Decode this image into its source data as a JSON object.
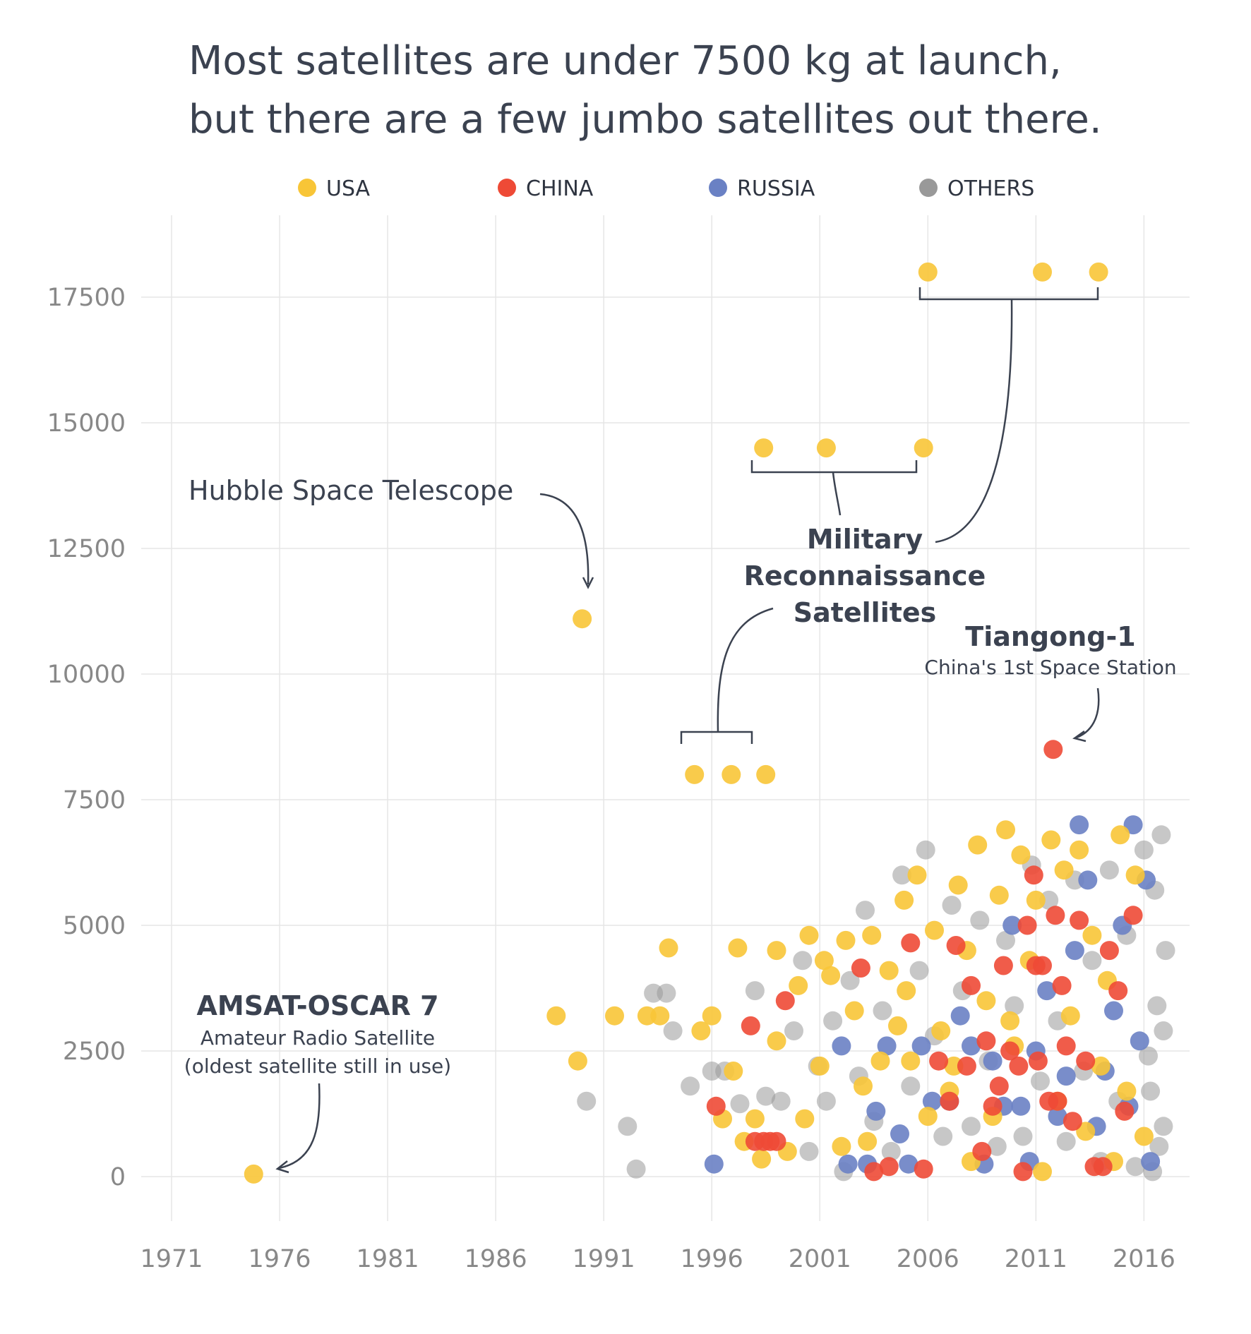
{
  "chart_data": {
    "type": "scatter",
    "title": "Most satellites are under 7500 kg at launch, but there are a few jumbo satellites out there.",
    "title_lines": [
      "Most satellites are under 7500 kg at launch,",
      "but there are a few jumbo satellites out there."
    ],
    "xlabel": "",
    "ylabel": "",
    "xlim": [
      1971,
      2017
    ],
    "ylim": [
      -500,
      18000
    ],
    "x_ticks": [
      1971,
      1976,
      1981,
      1986,
      1991,
      1996,
      2001,
      2006,
      2011,
      2016
    ],
    "y_ticks": [
      0,
      2500,
      5000,
      7500,
      10000,
      12500,
      15000,
      17500
    ],
    "grid": true,
    "legend_position": "top",
    "legend": [
      {
        "name": "USA",
        "color": "#f8c537"
      },
      {
        "name": "CHINA",
        "color": "#ee4a36"
      },
      {
        "name": "RUSSIA",
        "color": "#6a81c4"
      },
      {
        "name": "OTHERS",
        "color": "#999999"
      }
    ],
    "series": [
      {
        "name": "USA",
        "color": "#f8c537",
        "points": [
          [
            1974.8,
            50
          ],
          [
            1988.8,
            3200
          ],
          [
            1989.8,
            2300
          ],
          [
            1990.0,
            11100
          ],
          [
            1991.5,
            3200
          ],
          [
            1993.0,
            3200
          ],
          [
            1993.6,
            3200
          ],
          [
            1994.0,
            4550
          ],
          [
            1995.2,
            8000
          ],
          [
            1996.0,
            3200
          ],
          [
            1996.9,
            8000
          ],
          [
            1997.2,
            4550
          ],
          [
            1998.5,
            8000
          ],
          [
            1998.4,
            14500
          ],
          [
            1999.0,
            4500
          ],
          [
            2001.3,
            14500
          ],
          [
            2005.8,
            14500
          ],
          [
            2006.0,
            18000
          ],
          [
            2011.3,
            18000
          ],
          [
            2013.9,
            18000
          ],
          [
            1995.5,
            2900
          ],
          [
            1996.5,
            1150
          ],
          [
            1997.0,
            2100
          ],
          [
            1997.5,
            700
          ],
          [
            1998.0,
            1150
          ],
          [
            1998.3,
            350
          ],
          [
            1999.0,
            2700
          ],
          [
            1999.5,
            500
          ],
          [
            2000.0,
            3800
          ],
          [
            2000.3,
            1150
          ],
          [
            2000.5,
            4800
          ],
          [
            2001.0,
            2200
          ],
          [
            2001.5,
            4000
          ],
          [
            2002.0,
            600
          ],
          [
            2002.2,
            4700
          ],
          [
            2002.6,
            3300
          ],
          [
            2003.0,
            1800
          ],
          [
            2003.4,
            4800
          ],
          [
            2003.8,
            2300
          ],
          [
            2004.2,
            4100
          ],
          [
            2004.6,
            3000
          ],
          [
            2004.9,
            5500
          ],
          [
            2005.2,
            2300
          ],
          [
            2005.5,
            6000
          ],
          [
            2006.0,
            1200
          ],
          [
            2006.3,
            4900
          ],
          [
            2006.6,
            2900
          ],
          [
            2007.0,
            1700
          ],
          [
            2007.4,
            5800
          ],
          [
            2007.8,
            4500
          ],
          [
            2008.0,
            300
          ],
          [
            2008.3,
            6600
          ],
          [
            2008.7,
            3500
          ],
          [
            2009.0,
            1200
          ],
          [
            2009.3,
            5600
          ],
          [
            2009.6,
            6900
          ],
          [
            2010.0,
            2600
          ],
          [
            2010.3,
            6400
          ],
          [
            2010.7,
            4300
          ],
          [
            2011.0,
            5500
          ],
          [
            2011.3,
            100
          ],
          [
            2011.7,
            6700
          ],
          [
            2012.0,
            1500
          ],
          [
            2012.3,
            6100
          ],
          [
            2012.6,
            3200
          ],
          [
            2013.0,
            6500
          ],
          [
            2013.3,
            900
          ],
          [
            2013.6,
            4800
          ],
          [
            2014.0,
            2200
          ],
          [
            2014.3,
            3900
          ],
          [
            2014.6,
            300
          ],
          [
            2014.9,
            6800
          ],
          [
            2015.2,
            1700
          ],
          [
            2015.6,
            6000
          ],
          [
            2016.0,
            800
          ],
          [
            2001.2,
            4300
          ],
          [
            2003.2,
            700
          ],
          [
            2005.0,
            3700
          ],
          [
            2007.2,
            2200
          ],
          [
            2009.8,
            3100
          ]
        ]
      },
      {
        "name": "CHINA",
        "color": "#ee4a36",
        "points": [
          [
            1996.2,
            1400
          ],
          [
            1997.8,
            3000
          ],
          [
            1998.0,
            700
          ],
          [
            1998.4,
            700
          ],
          [
            1998.7,
            700
          ],
          [
            1999.0,
            700
          ],
          [
            1999.4,
            3500
          ],
          [
            2002.9,
            4150
          ],
          [
            2003.5,
            100
          ],
          [
            2004.2,
            200
          ],
          [
            2005.2,
            4650
          ],
          [
            2005.8,
            150
          ],
          [
            2006.5,
            2300
          ],
          [
            2007.0,
            1500
          ],
          [
            2007.3,
            4600
          ],
          [
            2007.8,
            2200
          ],
          [
            2008.0,
            3800
          ],
          [
            2008.5,
            500
          ],
          [
            2008.7,
            2700
          ],
          [
            2009.0,
            1400
          ],
          [
            2009.3,
            1800
          ],
          [
            2009.5,
            4200
          ],
          [
            2009.8,
            2500
          ],
          [
            2010.2,
            2200
          ],
          [
            2010.6,
            5000
          ],
          [
            2010.9,
            6000
          ],
          [
            2011.0,
            4200
          ],
          [
            2011.3,
            4200
          ],
          [
            2011.6,
            1500
          ],
          [
            2011.8,
            8500
          ],
          [
            2011.9,
            5200
          ],
          [
            2012.2,
            3800
          ],
          [
            2012.4,
            2600
          ],
          [
            2012.7,
            1100
          ],
          [
            2013.0,
            5100
          ],
          [
            2013.3,
            2300
          ],
          [
            2013.7,
            200
          ],
          [
            2014.1,
            200
          ],
          [
            2014.4,
            4500
          ],
          [
            2014.8,
            3700
          ],
          [
            2015.1,
            1300
          ],
          [
            2015.5,
            5200
          ],
          [
            2011.1,
            2300
          ],
          [
            2012.0,
            1500
          ],
          [
            2010.4,
            100
          ]
        ]
      },
      {
        "name": "RUSSIA",
        "color": "#6a81c4",
        "points": [
          [
            1996.1,
            250
          ],
          [
            2002.0,
            2600
          ],
          [
            2002.3,
            250
          ],
          [
            2003.2,
            250
          ],
          [
            2003.6,
            1300
          ],
          [
            2004.1,
            2600
          ],
          [
            2004.7,
            850
          ],
          [
            2005.1,
            250
          ],
          [
            2005.7,
            2600
          ],
          [
            2006.2,
            1500
          ],
          [
            2007.0,
            1500
          ],
          [
            2007.5,
            3200
          ],
          [
            2008.0,
            2600
          ],
          [
            2008.6,
            250
          ],
          [
            2009.0,
            2300
          ],
          [
            2009.5,
            1400
          ],
          [
            2009.9,
            5000
          ],
          [
            2010.3,
            1400
          ],
          [
            2010.7,
            300
          ],
          [
            2011.0,
            2500
          ],
          [
            2011.5,
            3700
          ],
          [
            2012.0,
            1200
          ],
          [
            2012.4,
            2000
          ],
          [
            2012.8,
            4500
          ],
          [
            2013.0,
            7000
          ],
          [
            2013.4,
            5900
          ],
          [
            2013.8,
            1000
          ],
          [
            2014.2,
            2100
          ],
          [
            2014.6,
            3300
          ],
          [
            2015.0,
            5000
          ],
          [
            2015.3,
            1400
          ],
          [
            2015.5,
            7000
          ],
          [
            2015.8,
            2700
          ],
          [
            2016.1,
            5900
          ],
          [
            2016.3,
            300
          ]
        ]
      },
      {
        "name": "OTHERS",
        "color": "#999999",
        "points": [
          [
            1990.2,
            1500
          ],
          [
            1992.1,
            1000
          ],
          [
            1992.5,
            150
          ],
          [
            1993.3,
            3650
          ],
          [
            1993.9,
            3650
          ],
          [
            1994.2,
            2900
          ],
          [
            1995.0,
            1800
          ],
          [
            1996.0,
            2100
          ],
          [
            1996.6,
            2100
          ],
          [
            1997.3,
            1450
          ],
          [
            1998.0,
            3700
          ],
          [
            1998.5,
            1600
          ],
          [
            1999.2,
            1500
          ],
          [
            1999.8,
            2900
          ],
          [
            2000.2,
            4300
          ],
          [
            2000.5,
            500
          ],
          [
            2000.9,
            2200
          ],
          [
            2001.3,
            1500
          ],
          [
            2001.6,
            3100
          ],
          [
            2002.1,
            100
          ],
          [
            2002.4,
            3900
          ],
          [
            2002.8,
            2000
          ],
          [
            2003.1,
            5300
          ],
          [
            2003.5,
            1100
          ],
          [
            2003.9,
            3300
          ],
          [
            2004.3,
            500
          ],
          [
            2004.8,
            6000
          ],
          [
            2005.2,
            1800
          ],
          [
            2005.6,
            4100
          ],
          [
            2005.9,
            6500
          ],
          [
            2006.3,
            2800
          ],
          [
            2006.7,
            800
          ],
          [
            2007.1,
            5400
          ],
          [
            2007.6,
            3700
          ],
          [
            2008.0,
            1000
          ],
          [
            2008.4,
            5100
          ],
          [
            2008.8,
            2300
          ],
          [
            2009.2,
            600
          ],
          [
            2009.6,
            4700
          ],
          [
            2010.0,
            3400
          ],
          [
            2010.4,
            800
          ],
          [
            2010.8,
            6200
          ],
          [
            2011.2,
            1900
          ],
          [
            2011.6,
            5500
          ],
          [
            2012.0,
            3100
          ],
          [
            2012.4,
            700
          ],
          [
            2012.8,
            5900
          ],
          [
            2013.2,
            2100
          ],
          [
            2013.6,
            4300
          ],
          [
            2014.0,
            300
          ],
          [
            2014.4,
            6100
          ],
          [
            2014.8,
            1500
          ],
          [
            2015.2,
            4800
          ],
          [
            2015.6,
            200
          ],
          [
            2016.0,
            6500
          ],
          [
            2016.2,
            2400
          ],
          [
            2016.4,
            100
          ],
          [
            2016.6,
            3400
          ],
          [
            2016.8,
            6800
          ],
          [
            2016.9,
            1000
          ],
          [
            2017.0,
            4500
          ],
          [
            2016.7,
            600
          ],
          [
            2016.5,
            5700
          ],
          [
            2016.3,
            1700
          ],
          [
            2016.9,
            2900
          ]
        ]
      }
    ],
    "annotations": {
      "hubble": "Hubble Space Telescope",
      "military_lines": [
        "Military",
        "Reconnaissance",
        "Satellites"
      ],
      "tiangong_title": "Tiangong-1",
      "tiangong_sub": "China's 1st Space Station",
      "amsat_title": "AMSAT-OSCAR 7",
      "amsat_sub1": "Amateur Radio Satellite",
      "amsat_sub2": "(oldest satellite still in use)"
    }
  }
}
